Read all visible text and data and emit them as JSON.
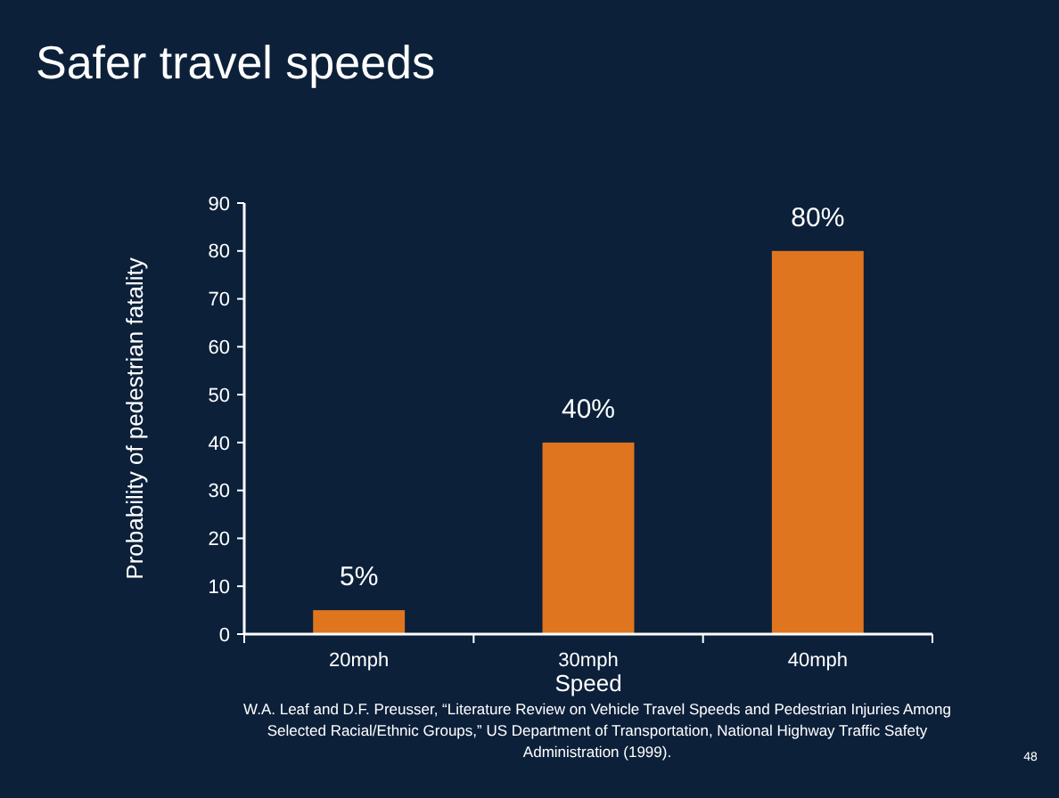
{
  "chart_data": {
    "type": "bar",
    "title": "Safer travel speeds",
    "xlabel": "Speed",
    "ylabel": "Probability of pedestrian fatality",
    "categories": [
      "20mph",
      "30mph",
      "40mph"
    ],
    "values": [
      5,
      40,
      80
    ],
    "value_labels": [
      "5%",
      "40%",
      "80%"
    ],
    "color": "#e07520",
    "ylim": [
      0,
      90
    ],
    "yticks": [
      0,
      10,
      20,
      30,
      40,
      50,
      60,
      70,
      80,
      90
    ],
    "grid": false,
    "annotations": [
      "W.A. Leaf and D.F. Preusser, “Literature Review on Vehicle Travel Speeds and Pedestrian Injuries Among Selected Racial/Ethnic Groups,” US Department of Transportation, National Highway Traffic Safety Administration (1999).",
      "48"
    ]
  }
}
